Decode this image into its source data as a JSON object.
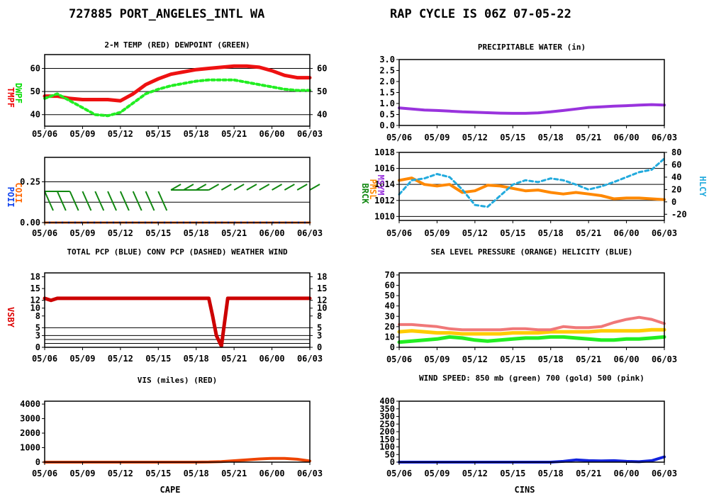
{
  "header": {
    "station": "727885 PORT_ANGELES_INTL WA",
    "cycle": "RAP CYCLE IS  06Z  07-05-22"
  },
  "x_ticks": [
    "05/06",
    "05/09",
    "05/12",
    "05/15",
    "05/18",
    "05/21",
    "06/00",
    "06/03"
  ],
  "chart_data": [
    {
      "id": "temp",
      "type": "line",
      "title": "2-M TEMP (RED) DEWPOINT (GREEN)",
      "left_labels": [
        {
          "text": "TMPF",
          "color": "#ee0000"
        },
        {
          "text": "DWPF",
          "color": "#00dd00"
        }
      ],
      "ylim": [
        35,
        66
      ],
      "yticks_left": [
        40,
        50,
        60
      ],
      "yticks_right": [
        40,
        50,
        60
      ],
      "gridlines": [
        40,
        50,
        60
      ],
      "series": [
        {
          "color": "#ee1111",
          "width": 5,
          "dash": "",
          "x": [
            0,
            1,
            2,
            3,
            4,
            5,
            6,
            7,
            8,
            9,
            10,
            11,
            12,
            13,
            14,
            15,
            16,
            17,
            18,
            19,
            20,
            21
          ],
          "values": [
            48,
            48,
            47,
            46.5,
            46.5,
            46.5,
            46,
            49,
            53,
            55.5,
            57.5,
            58.5,
            59.5,
            60,
            60.5,
            61,
            61,
            60.5,
            59,
            57,
            56,
            56
          ]
        },
        {
          "color": "#22ee22",
          "width": 4,
          "dash": "4,4",
          "x": [
            0,
            1,
            2,
            3,
            4,
            5,
            6,
            7,
            8,
            9,
            10,
            11,
            12,
            13,
            14,
            15,
            16,
            17,
            18,
            19,
            20,
            21
          ],
          "values": [
            47,
            49,
            46,
            43,
            40,
            39.5,
            41,
            45,
            49,
            51,
            52.5,
            53.5,
            54.5,
            55,
            55,
            55,
            54,
            53,
            52,
            51,
            50.5,
            50.5
          ]
        }
      ]
    },
    {
      "id": "pcp",
      "type": "line",
      "title": "TOTAL PCP (BLUE) CONV PCP (DASHED) WEATHER WIND",
      "left_labels": [
        {
          "text": "POII",
          "color": "#1144ee"
        },
        {
          "text": "COII",
          "color": "#ff6600"
        }
      ],
      "ylim": [
        0,
        0.4
      ],
      "yticks_left": [
        "0.00",
        "0.25"
      ],
      "gridlines": [
        0.125,
        0.25
      ],
      "series": [
        {
          "color": "#1144ee",
          "width": 3,
          "dash": "",
          "x": [
            0,
            1,
            2,
            3,
            4,
            5,
            6,
            7,
            8,
            9,
            10,
            11,
            12,
            13,
            14,
            15,
            16,
            17,
            18,
            19,
            20,
            21
          ],
          "values": [
            0,
            0,
            0,
            0,
            0,
            0,
            0,
            0,
            0,
            0,
            0,
            0,
            0,
            0,
            0,
            0,
            0,
            0,
            0,
            0,
            0,
            0
          ]
        },
        {
          "color": "#ff6600",
          "width": 3,
          "dash": "5,4",
          "x": [
            0,
            1,
            2,
            3,
            4,
            5,
            6,
            7,
            8,
            9,
            10,
            11,
            12,
            13,
            14,
            15,
            16,
            17,
            18,
            19,
            20,
            21
          ],
          "values": [
            0,
            0,
            0,
            0,
            0,
            0,
            0,
            0,
            0,
            0,
            0,
            0,
            0,
            0,
            0,
            0,
            0,
            0,
            0,
            0,
            0,
            0
          ]
        }
      ],
      "wind_barbs": {
        "color": "#118811",
        "x": [
          0,
          1,
          2,
          3,
          4,
          5,
          6,
          7,
          8,
          9,
          10,
          11,
          12,
          13,
          14,
          15,
          16,
          17,
          18,
          19,
          20,
          21
        ],
        "direction_deg": [
          330,
          330,
          330,
          330,
          330,
          330,
          330,
          330,
          330,
          330,
          60,
          60,
          60,
          60,
          60,
          60,
          60,
          60,
          60,
          60,
          60,
          60
        ]
      }
    },
    {
      "id": "vsby",
      "type": "line",
      "title": "",
      "left_labels": [
        {
          "text": "VSBY",
          "color": "#dd0000"
        }
      ],
      "ylim": [
        0,
        19
      ],
      "yticks_left": [
        0,
        3,
        5,
        8,
        10,
        12,
        15,
        18
      ],
      "yticks_right": [
        0,
        3,
        5,
        8,
        10,
        12,
        15,
        18
      ],
      "gridlines": [
        1,
        2,
        3,
        5
      ],
      "series": [
        {
          "color": "#cc0000",
          "width": 5,
          "dash": "",
          "x": [
            0,
            0.5,
            1,
            2,
            3,
            4,
            5,
            6,
            7,
            8,
            9,
            10,
            11,
            12,
            13,
            13.3,
            13.6,
            14.0,
            14.5,
            15,
            16,
            17,
            18,
            19,
            20,
            21
          ],
          "values": [
            12.5,
            12,
            12.5,
            12.5,
            12.5,
            12.5,
            12.5,
            12.5,
            12.5,
            12.5,
            12.5,
            12.5,
            12.5,
            12.5,
            12.5,
            8,
            3,
            0.3,
            12.5,
            12.5,
            12.5,
            12.5,
            12.5,
            12.5,
            12.5,
            12.5
          ]
        }
      ]
    },
    {
      "id": "cape",
      "type": "line",
      "title": "VIS (miles) (RED)",
      "ylim": [
        0,
        4200
      ],
      "yticks_left": [
        0,
        1000,
        2000,
        3000,
        4000
      ],
      "gridlines": [],
      "xlabel": "CAPE",
      "series": [
        {
          "color": "#ee4400",
          "width": 4,
          "dash": "",
          "x": [
            0,
            1,
            2,
            3,
            4,
            5,
            6,
            7,
            8,
            9,
            10,
            11,
            12,
            13,
            14,
            15,
            16,
            17,
            18,
            19,
            20,
            21
          ],
          "values": [
            0,
            0,
            0,
            0,
            0,
            0,
            0,
            0,
            0,
            0,
            0,
            0,
            0,
            10,
            40,
            100,
            160,
            220,
            260,
            260,
            200,
            80
          ]
        }
      ]
    },
    {
      "id": "pwat",
      "type": "line",
      "title": "PRECIPITABLE WATER (in)",
      "ylim": [
        0,
        3.0
      ],
      "yticks_left": [
        "0.0",
        "0.5",
        "1.0",
        "1.5",
        "2.0",
        "2.5",
        "3.0"
      ],
      "gridlines": [],
      "series": [
        {
          "color": "#9933dd",
          "width": 4,
          "dash": "",
          "x": [
            0,
            1,
            2,
            3,
            4,
            5,
            6,
            7,
            8,
            9,
            10,
            11,
            12,
            13,
            14,
            15,
            16,
            17,
            18,
            19,
            20,
            21
          ],
          "values": [
            0.8,
            0.75,
            0.7,
            0.68,
            0.65,
            0.62,
            0.6,
            0.58,
            0.56,
            0.55,
            0.55,
            0.57,
            0.62,
            0.68,
            0.75,
            0.82,
            0.85,
            0.88,
            0.9,
            0.93,
            0.95,
            0.93
          ]
        }
      ]
    },
    {
      "id": "pmsl",
      "type": "line",
      "title": "SEA LEVEL PRESSURE (ORANGE) HELICITY (BLUE)",
      "left_labels": [
        {
          "text": "BRCK",
          "color": "#118811"
        },
        {
          "text": "PMSL",
          "color": "#ff8800"
        },
        {
          "text": "MSYM",
          "color": "#9933dd"
        }
      ],
      "right_label": {
        "text": "HLCY",
        "color": "#22aadd"
      },
      "ylim": [
        1009.5,
        1018
      ],
      "yticks_left": [
        1010,
        1012,
        1014,
        1016,
        1018
      ],
      "yticks_right": [
        -20,
        0,
        20,
        40,
        60,
        80
      ],
      "right_ylim": [
        -30,
        80
      ],
      "gridlines": [
        1010,
        1012,
        1014,
        1016
      ],
      "series": [
        {
          "color": "#ff8800",
          "width": 4,
          "dash": "",
          "axis": "left",
          "x": [
            0,
            1,
            2,
            3,
            4,
            5,
            6,
            7,
            8,
            9,
            10,
            11,
            12,
            13,
            14,
            15,
            16,
            17,
            18,
            19,
            20,
            21
          ],
          "values": [
            1014.5,
            1014.8,
            1014,
            1013.8,
            1014,
            1013,
            1013.2,
            1013.9,
            1013.8,
            1013.5,
            1013.2,
            1013.3,
            1013.0,
            1012.8,
            1013.0,
            1012.8,
            1012.6,
            1012.2,
            1012.3,
            1012.3,
            1012.2,
            1012.1
          ]
        },
        {
          "color": "#22aadd",
          "width": 3,
          "dash": "5,4",
          "axis": "right",
          "x": [
            0,
            1,
            2,
            3,
            4,
            5,
            6,
            7,
            8,
            9,
            10,
            11,
            12,
            13,
            14,
            15,
            16,
            17,
            18,
            19,
            20,
            21
          ],
          "values": [
            12,
            35,
            38,
            45,
            40,
            20,
            -5,
            -8,
            10,
            28,
            35,
            32,
            38,
            35,
            28,
            20,
            25,
            32,
            40,
            48,
            52,
            70
          ]
        }
      ]
    },
    {
      "id": "wind",
      "type": "line",
      "title": "WIND SPEED: 850 mb (green) 700 (gold) 500 (pink)",
      "ylim": [
        0,
        72
      ],
      "yticks_left": [
        0,
        10,
        20,
        30,
        40,
        50,
        60,
        70
      ],
      "gridlines": [],
      "series": [
        {
          "color": "#22ee22",
          "width": 5,
          "dash": "",
          "x": [
            0,
            1,
            2,
            3,
            4,
            5,
            6,
            7,
            8,
            9,
            10,
            11,
            12,
            13,
            14,
            15,
            16,
            17,
            18,
            19,
            20,
            21
          ],
          "values": [
            5,
            6,
            7,
            8,
            10,
            9,
            7,
            6,
            7,
            8,
            9,
            9,
            10,
            10,
            9,
            8,
            7,
            7,
            8,
            8,
            9,
            10
          ]
        },
        {
          "color": "#ffcc00",
          "width": 5,
          "dash": "",
          "x": [
            0,
            1,
            2,
            3,
            4,
            5,
            6,
            7,
            8,
            9,
            10,
            11,
            12,
            13,
            14,
            15,
            16,
            17,
            18,
            19,
            20,
            21
          ],
          "values": [
            15,
            16,
            15,
            14,
            14,
            13,
            13,
            13,
            13,
            14,
            14,
            14,
            15,
            15,
            15,
            15,
            16,
            16,
            16,
            16,
            17,
            17
          ]
        },
        {
          "color": "#f07878",
          "width": 4,
          "dash": "",
          "x": [
            0,
            1,
            2,
            3,
            4,
            5,
            6,
            7,
            8,
            9,
            10,
            11,
            12,
            13,
            14,
            15,
            16,
            17,
            18,
            19,
            20,
            21
          ],
          "values": [
            22,
            22,
            21,
            20,
            18,
            17,
            17,
            17,
            17,
            18,
            18,
            17,
            17,
            20,
            19,
            19,
            20,
            24,
            27,
            29,
            27,
            23
          ]
        }
      ]
    },
    {
      "id": "cins",
      "type": "line",
      "title": "",
      "ylim": [
        0,
        400
      ],
      "yticks_left": [
        0,
        50,
        100,
        150,
        200,
        250,
        300,
        350,
        400
      ],
      "gridlines": [],
      "xlabel": "CINS",
      "series": [
        {
          "color": "#1122dd",
          "width": 4,
          "dash": "",
          "x": [
            0,
            1,
            2,
            3,
            4,
            5,
            6,
            7,
            8,
            9,
            10,
            11,
            12,
            13,
            14,
            15,
            16,
            17,
            18,
            19,
            20,
            21
          ],
          "values": [
            0,
            0,
            0,
            0,
            0,
            0,
            0,
            0,
            0,
            0,
            0,
            0,
            0,
            5,
            15,
            10,
            8,
            10,
            5,
            3,
            10,
            35
          ]
        }
      ]
    }
  ]
}
